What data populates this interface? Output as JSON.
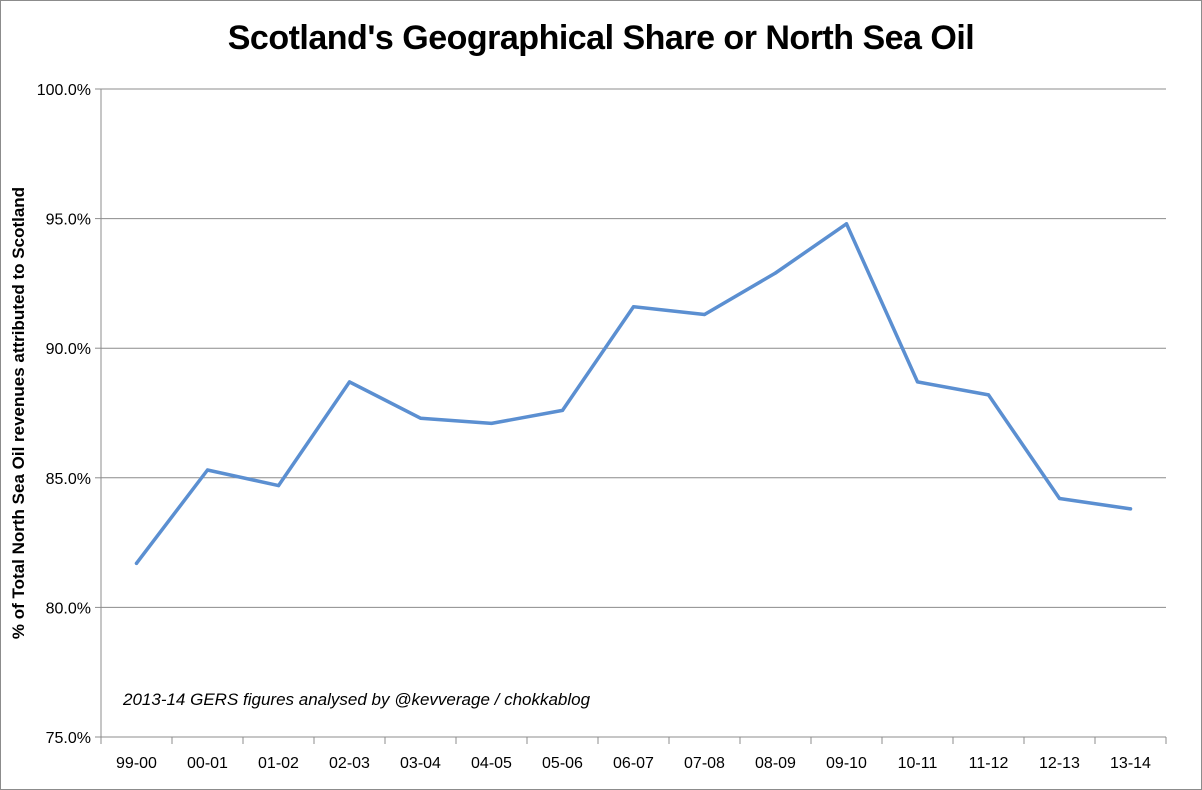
{
  "chart_data": {
    "type": "line",
    "title": "Scotland's Geographical Share or North Sea Oil",
    "ylabel": "% of Total North Sea Oil revenues attributed to Scotland",
    "xlabel": "",
    "categories": [
      "99-00",
      "00-01",
      "01-02",
      "02-03",
      "03-04",
      "04-05",
      "05-06",
      "06-07",
      "07-08",
      "08-09",
      "09-10",
      "10-11",
      "11-12",
      "12-13",
      "13-14"
    ],
    "series": [
      {
        "values": [
          81.7,
          85.3,
          84.7,
          88.7,
          87.3,
          87.1,
          87.6,
          91.6,
          91.3,
          92.9,
          94.8,
          88.7,
          88.2,
          84.2,
          83.8
        ],
        "color": "#5b8fd1"
      }
    ],
    "ylim": [
      75.0,
      100.0
    ],
    "yticks": [
      "75.0%",
      "80.0%",
      "85.0%",
      "90.0%",
      "95.0%",
      "100.0%"
    ],
    "grid": true,
    "legend": "none",
    "annotation": "2013-14 GERS figures analysed by @kevverage / chokkablog"
  }
}
